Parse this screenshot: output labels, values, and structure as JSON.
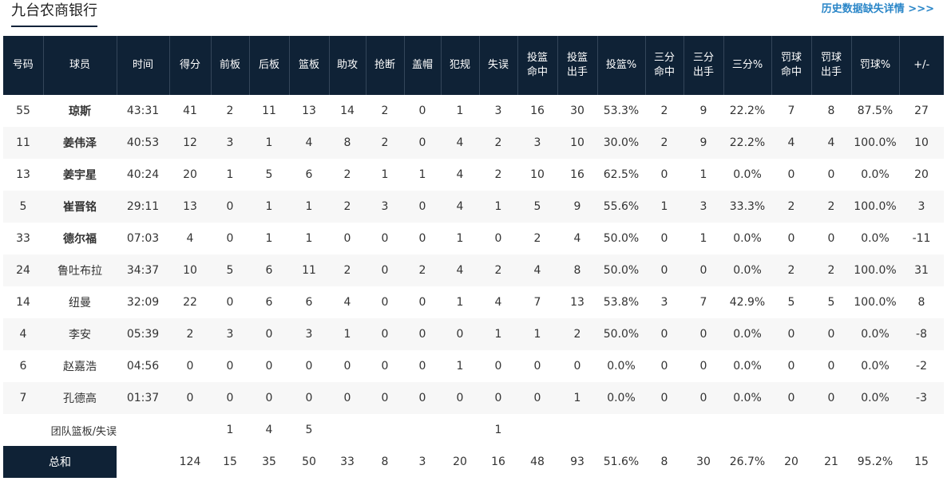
{
  "team_title": "九台农商银行",
  "history_link": "历史数据缺失详情 >>>",
  "columns": [
    [
      "号码"
    ],
    [
      "球员"
    ],
    [
      "时间"
    ],
    [
      "得分"
    ],
    [
      "前板"
    ],
    [
      "后板"
    ],
    [
      "篮板"
    ],
    [
      "助攻"
    ],
    [
      "抢断"
    ],
    [
      "盖帽"
    ],
    [
      "犯规"
    ],
    [
      "失误"
    ],
    [
      "投篮",
      "命中"
    ],
    [
      "投篮",
      "出手"
    ],
    [
      "投篮%"
    ],
    [
      "三分",
      "命中"
    ],
    [
      "三分",
      "出手"
    ],
    [
      "三分%"
    ],
    [
      "罚球",
      "命中"
    ],
    [
      "罚球",
      "出手"
    ],
    [
      "罚球%"
    ],
    [
      "+/-"
    ]
  ],
  "players": [
    {
      "num": "55",
      "name": "琼斯",
      "starter": true,
      "stats": [
        "43:31",
        "41",
        "2",
        "11",
        "13",
        "14",
        "2",
        "0",
        "1",
        "3",
        "16",
        "30",
        "53.3%",
        "2",
        "9",
        "22.2%",
        "7",
        "8",
        "87.5%",
        "27"
      ]
    },
    {
      "num": "11",
      "name": "姜伟泽",
      "starter": true,
      "stats": [
        "40:53",
        "12",
        "3",
        "1",
        "4",
        "8",
        "2",
        "0",
        "4",
        "2",
        "3",
        "10",
        "30.0%",
        "2",
        "9",
        "22.2%",
        "4",
        "4",
        "100.0%",
        "10"
      ]
    },
    {
      "num": "13",
      "name": "姜宇星",
      "starter": true,
      "stats": [
        "40:24",
        "20",
        "1",
        "5",
        "6",
        "2",
        "1",
        "1",
        "4",
        "2",
        "10",
        "16",
        "62.5%",
        "0",
        "1",
        "0.0%",
        "0",
        "0",
        "0.0%",
        "20"
      ]
    },
    {
      "num": "5",
      "name": "崔晋铭",
      "starter": true,
      "stats": [
        "29:11",
        "13",
        "0",
        "1",
        "1",
        "2",
        "3",
        "0",
        "4",
        "1",
        "5",
        "9",
        "55.6%",
        "1",
        "3",
        "33.3%",
        "2",
        "2",
        "100.0%",
        "3"
      ]
    },
    {
      "num": "33",
      "name": "德尔福",
      "starter": true,
      "stats": [
        "07:03",
        "4",
        "0",
        "1",
        "1",
        "0",
        "0",
        "0",
        "1",
        "0",
        "2",
        "4",
        "50.0%",
        "0",
        "1",
        "0.0%",
        "0",
        "0",
        "0.0%",
        "-11"
      ]
    },
    {
      "num": "24",
      "name": "鲁吐布拉",
      "starter": false,
      "stats": [
        "34:37",
        "10",
        "5",
        "6",
        "11",
        "2",
        "0",
        "2",
        "4",
        "2",
        "4",
        "8",
        "50.0%",
        "0",
        "0",
        "0.0%",
        "2",
        "2",
        "100.0%",
        "31"
      ]
    },
    {
      "num": "14",
      "name": "纽曼",
      "starter": false,
      "stats": [
        "32:09",
        "22",
        "0",
        "6",
        "6",
        "4",
        "0",
        "0",
        "1",
        "4",
        "7",
        "13",
        "53.8%",
        "3",
        "7",
        "42.9%",
        "5",
        "5",
        "100.0%",
        "8"
      ]
    },
    {
      "num": "4",
      "name": "李安",
      "starter": false,
      "stats": [
        "05:39",
        "2",
        "3",
        "0",
        "3",
        "1",
        "0",
        "0",
        "0",
        "1",
        "1",
        "2",
        "50.0%",
        "0",
        "0",
        "0.0%",
        "0",
        "0",
        "0.0%",
        "-8"
      ]
    },
    {
      "num": "6",
      "name": "赵嘉浩",
      "starter": false,
      "stats": [
        "04:56",
        "0",
        "0",
        "0",
        "0",
        "0",
        "0",
        "0",
        "1",
        "0",
        "0",
        "0",
        "0.0%",
        "0",
        "0",
        "0.0%",
        "0",
        "0",
        "0.0%",
        "-2"
      ]
    },
    {
      "num": "7",
      "name": "孔德高",
      "starter": false,
      "stats": [
        "01:37",
        "0",
        "0",
        "0",
        "0",
        "0",
        "0",
        "0",
        "0",
        "0",
        "0",
        "1",
        "0.0%",
        "0",
        "0",
        "0.0%",
        "0",
        "0",
        "0.0%",
        "-3"
      ]
    }
  ],
  "team_row": {
    "label": "团队篮板/失误",
    "stats": [
      "",
      "",
      "1",
      "4",
      "5",
      "",
      "",
      "",
      "",
      "1",
      "",
      "",
      "",
      "",
      "",
      "",
      "",
      "",
      "",
      ""
    ]
  },
  "total_row": {
    "label": "总和",
    "stats": [
      "",
      "124",
      "15",
      "35",
      "50",
      "33",
      "8",
      "3",
      "20",
      "16",
      "48",
      "93",
      "51.6%",
      "8",
      "30",
      "26.7%",
      "20",
      "21",
      "95.2%",
      "15"
    ]
  }
}
